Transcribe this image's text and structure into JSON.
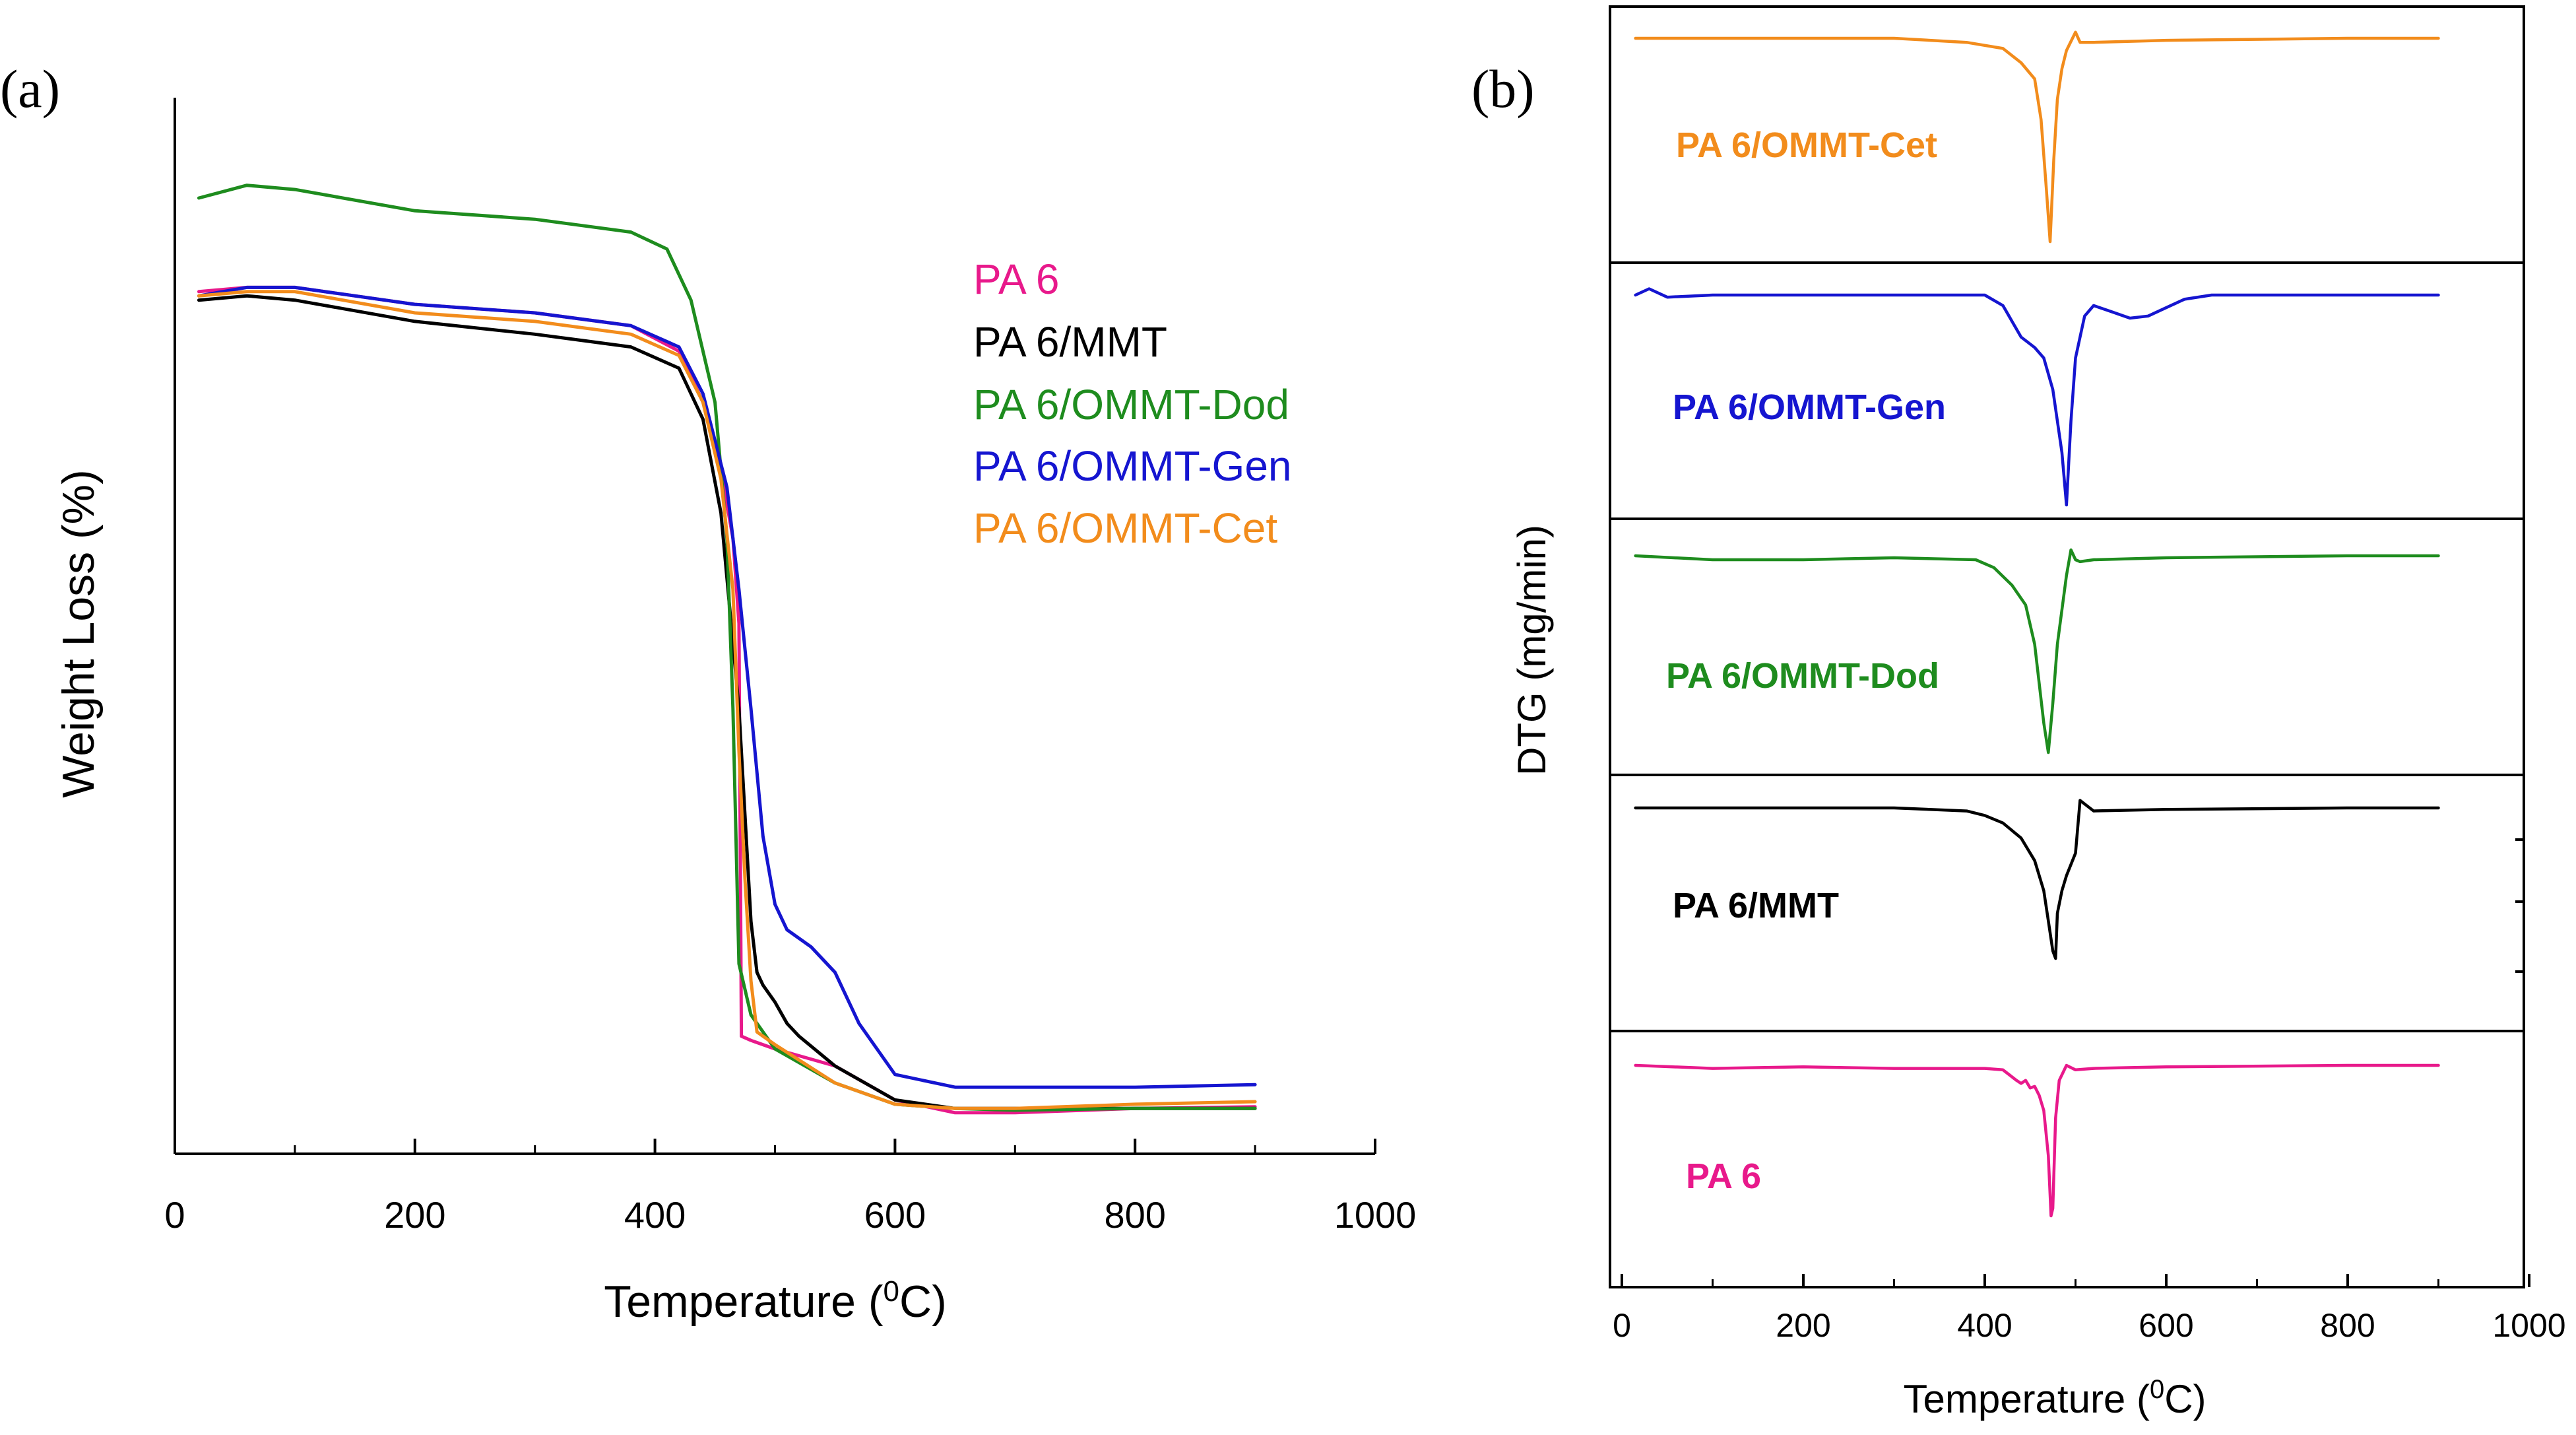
{
  "chart_data": [
    {
      "panel": "(a)",
      "type": "line",
      "xlabel": "Temperature (0C)",
      "xlabel_main": "Temperature (",
      "xlabel_sup": "0",
      "xlabel_tail": "C)",
      "ylabel": "Weight Loss (%)",
      "xlim": [
        0,
        1000
      ],
      "ylim": [
        0,
        110
      ],
      "xticks": [
        "0",
        "200",
        "400",
        "600",
        "800",
        "1000"
      ],
      "x_tick_values": [
        0,
        200,
        400,
        600,
        800,
        1000
      ],
      "legend_position": "top-right",
      "series": [
        {
          "name": "PA 6",
          "color": "#e8198b",
          "x": [
            20,
            60,
            100,
            200,
            300,
            380,
            420,
            440,
            455,
            465,
            470,
            472,
            480,
            500,
            550,
            600,
            650,
            700,
            800,
            900
          ],
          "y": [
            99,
            99.5,
            99.5,
            97.5,
            96.5,
            95,
            92,
            86,
            78,
            70,
            60,
            11.5,
            11,
            10,
            8,
            4,
            2.5,
            2.5,
            3,
            3.2
          ]
        },
        {
          "name": "PA 6/MMT",
          "color": "#000000",
          "x": [
            20,
            60,
            100,
            200,
            300,
            380,
            420,
            440,
            455,
            470,
            480,
            485,
            490,
            500,
            510,
            520,
            550,
            600,
            650,
            700,
            800,
            900
          ],
          "y": [
            98,
            98.5,
            98,
            95.5,
            94,
            92.5,
            90,
            84,
            73,
            50,
            25,
            19,
            17.5,
            15.5,
            13,
            11.5,
            8,
            4,
            3,
            3,
            3,
            3
          ]
        },
        {
          "name": "PA 6/OMMT-Dod",
          "color": "#1e8c1e",
          "x": [
            20,
            60,
            100,
            200,
            300,
            380,
            410,
            430,
            450,
            460,
            465,
            470,
            480,
            500,
            550,
            600,
            650,
            700,
            800,
            900
          ],
          "y": [
            110,
            111.5,
            111,
            108.5,
            107.5,
            106,
            104,
            98,
            86,
            70,
            50,
            20,
            14,
            10,
            6,
            3.5,
            3,
            2.8,
            3,
            3
          ]
        },
        {
          "name": "PA 6/OMMT-Gen",
          "color": "#1515d0",
          "x": [
            20,
            60,
            100,
            200,
            300,
            380,
            420,
            440,
            460,
            470,
            480,
            490,
            500,
            510,
            530,
            550,
            570,
            600,
            650,
            700,
            800,
            900
          ],
          "y": [
            98.5,
            99.5,
            99.5,
            97.5,
            96.5,
            95,
            92.5,
            87,
            76,
            64,
            50,
            35,
            27,
            24,
            22,
            19,
            13,
            7,
            5.5,
            5.5,
            5.5,
            5.8
          ]
        },
        {
          "name": "PA 6/OMMT-Cet",
          "color": "#f28c1c",
          "x": [
            20,
            60,
            100,
            200,
            300,
            380,
            420,
            440,
            455,
            465,
            470,
            475,
            480,
            485,
            490,
            500,
            550,
            600,
            650,
            700,
            800,
            900
          ],
          "y": [
            98.5,
            99,
            99,
            96.5,
            95.5,
            94,
            91.5,
            86,
            77,
            64,
            45,
            30,
            18,
            12,
            11.5,
            10.5,
            6,
            3.5,
            3,
            3,
            3.5,
            3.8
          ]
        }
      ]
    },
    {
      "panel": "(b)",
      "type": "line",
      "xlabel": "Temperature (0C)",
      "xlabel_main": "Temperature (",
      "xlabel_sup": "0",
      "xlabel_tail": "C)",
      "ylabel": "DTG (mg/min)",
      "xlim": [
        0,
        1000
      ],
      "xticks": [
        "0",
        "200",
        "400",
        "600",
        "800",
        "1000"
      ],
      "x_tick_values": [
        0,
        200,
        400,
        600,
        800,
        1000
      ],
      "layout": "stacked",
      "series": [
        {
          "name": "PA 6/OMMT-Cet",
          "color": "#f28c1c",
          "x": [
            15,
            100,
            200,
            300,
            380,
            420,
            440,
            455,
            462,
            468,
            472,
            476,
            480,
            485,
            490,
            500,
            505,
            520,
            600,
            800,
            900
          ],
          "y": [
            0,
            0,
            0,
            0,
            -0.02,
            -0.05,
            -0.12,
            -0.2,
            -0.4,
            -0.75,
            -1.0,
            -0.6,
            -0.3,
            -0.15,
            -0.06,
            0.03,
            -0.02,
            -0.02,
            -0.01,
            0,
            0
          ]
        },
        {
          "name": "PA 6/OMMT-Gen",
          "color": "#1515d0",
          "x": [
            15,
            30,
            50,
            100,
            200,
            300,
            400,
            420,
            440,
            455,
            465,
            475,
            485,
            490,
            495,
            500,
            510,
            520,
            540,
            560,
            580,
            600,
            620,
            650,
            700,
            800,
            900
          ],
          "y": [
            0,
            0.03,
            -0.01,
            0,
            0,
            0,
            0,
            -0.05,
            -0.2,
            -0.25,
            -0.3,
            -0.45,
            -0.75,
            -1.0,
            -0.6,
            -0.3,
            -0.1,
            -0.05,
            -0.08,
            -0.11,
            -0.1,
            -0.06,
            -0.02,
            0,
            0,
            0,
            0
          ]
        },
        {
          "name": "PA 6/OMMT-Dod",
          "color": "#1e8c1e",
          "x": [
            15,
            100,
            200,
            300,
            390,
            410,
            430,
            445,
            455,
            465,
            470,
            475,
            480,
            490,
            495,
            500,
            505,
            520,
            600,
            800,
            900
          ],
          "y": [
            0,
            -0.02,
            -0.02,
            -0.01,
            -0.02,
            -0.06,
            -0.15,
            -0.25,
            -0.45,
            -0.85,
            -1.0,
            -0.75,
            -0.45,
            -0.1,
            0.03,
            -0.02,
            -0.03,
            -0.02,
            -0.01,
            0,
            0
          ]
        },
        {
          "name": "PA 6/MMT",
          "color": "#000000",
          "x": [
            15,
            100,
            200,
            300,
            380,
            400,
            420,
            440,
            455,
            465,
            470,
            475,
            478,
            480,
            485,
            490,
            500,
            505,
            520,
            600,
            800,
            900
          ],
          "y": [
            0,
            0,
            0,
            0,
            -0.02,
            -0.05,
            -0.1,
            -0.2,
            -0.35,
            -0.55,
            -0.75,
            -0.95,
            -1.0,
            -0.7,
            -0.55,
            -0.45,
            -0.3,
            0.05,
            -0.02,
            -0.01,
            0,
            0
          ]
        },
        {
          "name": "PA 6",
          "color": "#e8198b",
          "x": [
            15,
            100,
            200,
            300,
            400,
            420,
            435,
            440,
            445,
            450,
            455,
            460,
            465,
            470,
            473,
            475,
            478,
            482,
            490,
            500,
            520,
            600,
            800,
            900
          ],
          "y": [
            0,
            -0.02,
            -0.01,
            -0.02,
            -0.02,
            -0.03,
            -0.1,
            -0.12,
            -0.1,
            -0.15,
            -0.14,
            -0.2,
            -0.3,
            -0.6,
            -1.0,
            -0.95,
            -0.35,
            -0.1,
            0,
            -0.03,
            -0.02,
            -0.01,
            0,
            0
          ]
        }
      ]
    }
  ]
}
